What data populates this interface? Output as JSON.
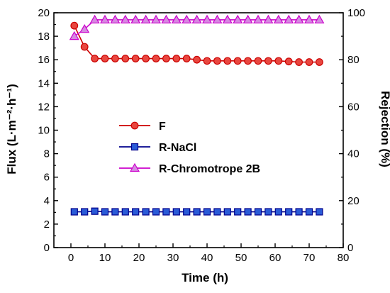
{
  "chart_data": {
    "type": "line",
    "xlabel": "Time (h)",
    "ylabel_left": "Flux (L·m⁻²·h⁻¹)",
    "ylabel_right": "Rejection (%)",
    "xlim": [
      -5,
      80
    ],
    "ylim_left": [
      0,
      20
    ],
    "ylim_right": [
      0,
      100
    ],
    "x_ticks": [
      0,
      10,
      20,
      30,
      40,
      50,
      60,
      70,
      80
    ],
    "y_ticks_left": [
      0,
      2,
      4,
      6,
      8,
      10,
      12,
      14,
      16,
      18,
      20
    ],
    "y_ticks_right": [
      0,
      20,
      40,
      60,
      80,
      100
    ],
    "legend_position": "center-left",
    "series": [
      {
        "name": "F",
        "axis": "left",
        "marker": "circle",
        "color": "#cc0000",
        "fill": "#e8473f",
        "x": [
          1,
          4,
          7,
          10,
          13,
          16,
          19,
          22,
          25,
          28,
          31,
          34,
          37,
          40,
          43,
          46,
          49,
          52,
          55,
          58,
          61,
          64,
          67,
          70,
          73
        ],
        "y": [
          18.9,
          17.1,
          16.1,
          16.1,
          16.1,
          16.1,
          16.1,
          16.1,
          16.1,
          16.1,
          16.1,
          16.1,
          16.0,
          15.9,
          15.9,
          15.9,
          15.9,
          15.9,
          15.9,
          15.9,
          15.9,
          15.85,
          15.8,
          15.8,
          15.8
        ]
      },
      {
        "name": "R-NaCl",
        "axis": "left",
        "marker": "square",
        "color": "#00008b",
        "fill": "#2a5bd7",
        "x": [
          1,
          4,
          7,
          10,
          13,
          16,
          19,
          22,
          25,
          28,
          31,
          34,
          37,
          40,
          43,
          46,
          49,
          52,
          55,
          58,
          61,
          64,
          67,
          70,
          73
        ],
        "y": [
          3.05,
          3.05,
          3.1,
          3.05,
          3.05,
          3.05,
          3.05,
          3.05,
          3.05,
          3.05,
          3.05,
          3.05,
          3.05,
          3.05,
          3.05,
          3.05,
          3.05,
          3.05,
          3.05,
          3.05,
          3.05,
          3.05,
          3.05,
          3.05,
          3.05
        ]
      },
      {
        "name": "R-Chromotrope 2B",
        "axis": "right",
        "marker": "triangle",
        "color": "#cc00cc",
        "fill": "#d58ae0",
        "x": [
          1,
          4,
          7,
          10,
          13,
          16,
          19,
          22,
          25,
          28,
          31,
          34,
          37,
          40,
          43,
          46,
          49,
          52,
          55,
          58,
          61,
          64,
          67,
          70,
          73
        ],
        "y": [
          90,
          93,
          97,
          97,
          97,
          97,
          97,
          97,
          97,
          97,
          97,
          97,
          97,
          97,
          97,
          97,
          97,
          97,
          97,
          97,
          97,
          97,
          97,
          97,
          97
        ]
      }
    ]
  }
}
